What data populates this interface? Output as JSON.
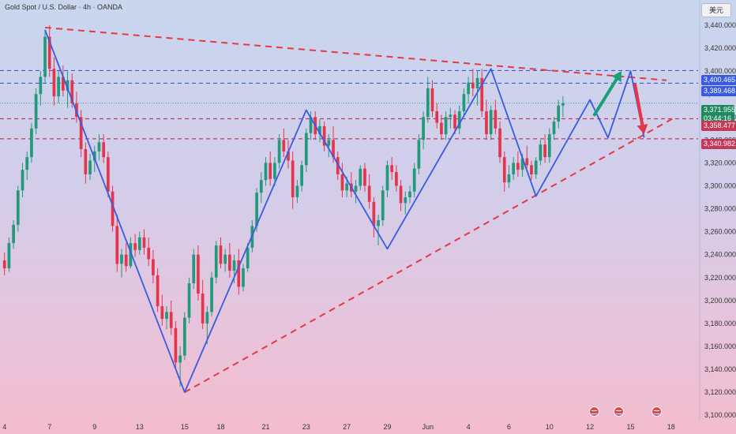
{
  "header": {
    "title": "Gold Spot / U.S. Dollar · 4h · OANDA",
    "currency_button": "美元"
  },
  "colors": {
    "up": "#22997a",
    "down": "#e5354b",
    "pattern_line": "#3a5be0",
    "trend_line": "#e53943",
    "level_blue": "#3a5be0",
    "level_red": "#c23a57",
    "arrow_up": "#1a9f78",
    "arrow_down": "#e5354b"
  },
  "price_tags": {
    "level_1": "3,400.465",
    "level_2": "3,389.468",
    "level_3": "3,358.477",
    "level_4": "3,340.982",
    "current_price": "3,371.955",
    "countdown": "03:44:16"
  },
  "chart_data": {
    "type": "candlestick",
    "title": "Gold Spot / U.S. Dollar · 4h · OANDA",
    "y_range": [
      3096,
      3462
    ],
    "y_ticks": [
      "3,440.000",
      "3,420.000",
      "3,400.000",
      "3,380.000",
      "3,360.000",
      "3,340.000",
      "3,320.000",
      "3,300.000",
      "3,280.000",
      "3,260.000",
      "3,240.000",
      "3,220.000",
      "3,200.000",
      "3,180.000",
      "3,160.000",
      "3,140.000",
      "3,120.000",
      "3,100.000"
    ],
    "y_tick_values": [
      3440,
      3420,
      3400,
      3380,
      3360,
      3340,
      3320,
      3300,
      3280,
      3260,
      3240,
      3220,
      3200,
      3180,
      3160,
      3140,
      3120,
      3100
    ],
    "x_labels": [
      {
        "label": "4",
        "i": 0
      },
      {
        "label": "7",
        "i": 10
      },
      {
        "label": "9",
        "i": 20
      },
      {
        "label": "13",
        "i": 30
      },
      {
        "label": "15",
        "i": 40
      },
      {
        "label": "18",
        "i": 48
      },
      {
        "label": "21",
        "i": 58
      },
      {
        "label": "23",
        "i": 67
      },
      {
        "label": "27",
        "i": 76
      },
      {
        "label": "29",
        "i": 85
      },
      {
        "label": "Jun",
        "i": 94
      },
      {
        "label": "4",
        "i": 103
      },
      {
        "label": "6",
        "i": 112
      },
      {
        "label": "10",
        "i": 121
      },
      {
        "label": "12",
        "i": 130
      },
      {
        "label": "15",
        "i": 139
      },
      {
        "label": "18",
        "i": 148
      }
    ],
    "x_index_range": [
      -1,
      154
    ],
    "candles": [
      [
        3235,
        3242,
        3222,
        3228
      ],
      [
        3228,
        3255,
        3225,
        3250
      ],
      [
        3250,
        3270,
        3245,
        3266
      ],
      [
        3266,
        3300,
        3260,
        3296
      ],
      [
        3296,
        3320,
        3290,
        3314
      ],
      [
        3314,
        3330,
        3305,
        3325
      ],
      [
        3325,
        3355,
        3320,
        3350
      ],
      [
        3350,
        3385,
        3345,
        3380
      ],
      [
        3380,
        3400,
        3370,
        3395
      ],
      [
        3395,
        3436,
        3390,
        3430
      ],
      [
        3430,
        3440,
        3395,
        3402
      ],
      [
        3402,
        3412,
        3370,
        3378
      ],
      [
        3378,
        3400,
        3372,
        3395
      ],
      [
        3395,
        3405,
        3378,
        3383
      ],
      [
        3383,
        3400,
        3368,
        3392
      ],
      [
        3392,
        3398,
        3368,
        3372
      ],
      [
        3372,
        3382,
        3355,
        3360
      ],
      [
        3360,
        3366,
        3325,
        3332
      ],
      [
        3332,
        3338,
        3302,
        3310
      ],
      [
        3310,
        3328,
        3305,
        3322
      ],
      [
        3322,
        3335,
        3312,
        3330
      ],
      [
        3330,
        3345,
        3322,
        3338
      ],
      [
        3338,
        3345,
        3320,
        3325
      ],
      [
        3325,
        3330,
        3290,
        3295
      ],
      [
        3295,
        3300,
        3260,
        3265
      ],
      [
        3265,
        3275,
        3225,
        3232
      ],
      [
        3232,
        3245,
        3220,
        3240
      ],
      [
        3240,
        3250,
        3225,
        3230
      ],
      [
        3230,
        3255,
        3228,
        3250
      ],
      [
        3250,
        3258,
        3238,
        3244
      ],
      [
        3244,
        3260,
        3240,
        3255
      ],
      [
        3255,
        3262,
        3240,
        3246
      ],
      [
        3246,
        3255,
        3230,
        3236
      ],
      [
        3236,
        3244,
        3215,
        3222
      ],
      [
        3222,
        3228,
        3190,
        3195
      ],
      [
        3195,
        3205,
        3178,
        3184
      ],
      [
        3184,
        3195,
        3175,
        3190
      ],
      [
        3190,
        3200,
        3170,
        3176
      ],
      [
        3176,
        3182,
        3140,
        3146
      ],
      [
        3146,
        3160,
        3125,
        3152
      ],
      [
        3152,
        3190,
        3148,
        3185
      ],
      [
        3185,
        3220,
        3180,
        3215
      ],
      [
        3215,
        3245,
        3210,
        3240
      ],
      [
        3240,
        3248,
        3200,
        3206
      ],
      [
        3206,
        3218,
        3175,
        3180
      ],
      [
        3180,
        3195,
        3162,
        3190
      ],
      [
        3190,
        3225,
        3186,
        3220
      ],
      [
        3220,
        3252,
        3215,
        3248
      ],
      [
        3248,
        3255,
        3228,
        3232
      ],
      [
        3232,
        3245,
        3225,
        3240
      ],
      [
        3240,
        3250,
        3220,
        3226
      ],
      [
        3226,
        3240,
        3215,
        3235
      ],
      [
        3235,
        3245,
        3205,
        3212
      ],
      [
        3212,
        3232,
        3208,
        3228
      ],
      [
        3228,
        3250,
        3225,
        3246
      ],
      [
        3246,
        3270,
        3242,
        3265
      ],
      [
        3265,
        3298,
        3260,
        3294
      ],
      [
        3294,
        3312,
        3285,
        3305
      ],
      [
        3305,
        3325,
        3300,
        3320
      ],
      [
        3320,
        3330,
        3300,
        3306
      ],
      [
        3306,
        3325,
        3300,
        3320
      ],
      [
        3320,
        3345,
        3315,
        3340
      ],
      [
        3340,
        3350,
        3325,
        3330
      ],
      [
        3330,
        3340,
        3315,
        3322
      ],
      [
        3322,
        3330,
        3280,
        3290
      ],
      [
        3290,
        3305,
        3285,
        3300
      ],
      [
        3300,
        3322,
        3295,
        3318
      ],
      [
        3318,
        3350,
        3312,
        3346
      ],
      [
        3346,
        3365,
        3340,
        3360
      ],
      [
        3360,
        3365,
        3340,
        3345
      ],
      [
        3345,
        3358,
        3338,
        3352
      ],
      [
        3352,
        3356,
        3330,
        3335
      ],
      [
        3335,
        3345,
        3325,
        3340
      ],
      [
        3340,
        3352,
        3320,
        3325
      ],
      [
        3325,
        3330,
        3305,
        3310
      ],
      [
        3310,
        3320,
        3290,
        3296
      ],
      [
        3296,
        3308,
        3290,
        3302
      ],
      [
        3302,
        3312,
        3290,
        3295
      ],
      [
        3295,
        3305,
        3285,
        3300
      ],
      [
        3300,
        3318,
        3296,
        3315
      ],
      [
        3315,
        3320,
        3295,
        3300
      ],
      [
        3300,
        3310,
        3280,
        3286
      ],
      [
        3286,
        3290,
        3255,
        3265
      ],
      [
        3265,
        3275,
        3248,
        3270
      ],
      [
        3270,
        3300,
        3265,
        3296
      ],
      [
        3296,
        3322,
        3290,
        3318
      ],
      [
        3318,
        3325,
        3305,
        3312
      ],
      [
        3312,
        3318,
        3295,
        3300
      ],
      [
        3300,
        3305,
        3278,
        3285
      ],
      [
        3285,
        3295,
        3275,
        3290
      ],
      [
        3290,
        3300,
        3285,
        3295
      ],
      [
        3295,
        3320,
        3290,
        3315
      ],
      [
        3315,
        3345,
        3310,
        3340
      ],
      [
        3340,
        3365,
        3332,
        3360
      ],
      [
        3360,
        3395,
        3355,
        3385
      ],
      [
        3385,
        3392,
        3360,
        3365
      ],
      [
        3365,
        3372,
        3350,
        3355
      ],
      [
        3355,
        3362,
        3340,
        3345
      ],
      [
        3345,
        3365,
        3340,
        3360
      ],
      [
        3360,
        3368,
        3350,
        3362
      ],
      [
        3362,
        3366,
        3345,
        3350
      ],
      [
        3350,
        3370,
        3345,
        3365
      ],
      [
        3365,
        3385,
        3360,
        3380
      ],
      [
        3380,
        3395,
        3372,
        3390
      ],
      [
        3390,
        3402,
        3378,
        3385
      ],
      [
        3385,
        3400,
        3370,
        3394
      ],
      [
        3394,
        3402,
        3360,
        3365
      ],
      [
        3365,
        3375,
        3340,
        3345
      ],
      [
        3345,
        3370,
        3340,
        3366
      ],
      [
        3366,
        3375,
        3345,
        3350
      ],
      [
        3350,
        3356,
        3320,
        3325
      ],
      [
        3325,
        3330,
        3295,
        3303
      ],
      [
        3303,
        3318,
        3298,
        3310
      ],
      [
        3310,
        3325,
        3305,
        3320
      ],
      [
        3320,
        3330,
        3308,
        3314
      ],
      [
        3314,
        3328,
        3308,
        3324
      ],
      [
        3324,
        3335,
        3315,
        3318
      ],
      [
        3318,
        3322,
        3305,
        3310
      ],
      [
        3310,
        3325,
        3306,
        3322
      ],
      [
        3322,
        3340,
        3318,
        3336
      ],
      [
        3336,
        3345,
        3320,
        3325
      ],
      [
        3325,
        3350,
        3320,
        3345
      ],
      [
        3345,
        3360,
        3340,
        3356
      ],
      [
        3356,
        3375,
        3350,
        3370
      ],
      [
        3370,
        3378,
        3360,
        3372
      ]
    ],
    "pattern_path": [
      [
        9,
        3436
      ],
      [
        40,
        3120
      ],
      [
        67,
        3366
      ],
      [
        85,
        3245
      ],
      [
        108,
        3402
      ],
      [
        118,
        3291
      ],
      [
        130,
        3375
      ],
      [
        134,
        3342
      ],
      [
        139,
        3400
      ],
      [
        142,
        3342
      ]
    ],
    "resistance_line": {
      "from": [
        9,
        3438
      ],
      "to": [
        147,
        3392
      ]
    },
    "support_line": {
      "from": [
        40,
        3120
      ],
      "to": [
        149,
        3360
      ]
    },
    "levels": [
      3400.465,
      3389.468,
      3358.477,
      3340.982
    ],
    "arrow_up": {
      "from": [
        131,
        3362
      ],
      "to": [
        137,
        3400
      ]
    },
    "arrow_down": {
      "from": [
        140,
        3388
      ],
      "to": [
        142,
        3345
      ]
    }
  }
}
